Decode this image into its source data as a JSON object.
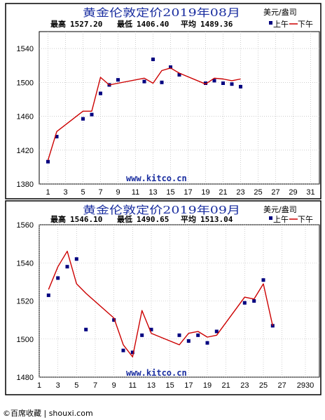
{
  "colors": {
    "line": "#cc0000",
    "marker": "#000080",
    "title": "#1a2ea0",
    "frame": "#000000",
    "grid": "#b0b0b0"
  },
  "footer": "©百席收藏 | shouxi.com",
  "chart_data": [
    {
      "type": "line",
      "title": "黄金伦敦定价2019年08月",
      "unit": "美元/盎司",
      "stats": {
        "high_label": "最高",
        "high": "1527.20",
        "low_label": "最低",
        "low": "1406.40",
        "avg_label": "平均",
        "avg": "1489.36"
      },
      "legend": {
        "am": "上午",
        "pm": "下午",
        "placement": "top-right"
      },
      "watermark": "www.kitco.cn",
      "xlim": [
        0,
        32
      ],
      "xticks": [
        "1",
        "3",
        "5",
        "7",
        "9",
        "11",
        "13",
        "15",
        "17",
        "19",
        "21",
        "23",
        "25",
        "27",
        "29",
        "31"
      ],
      "ylim": [
        1380,
        1560
      ],
      "yticks": [
        "1380",
        "1420",
        "1460",
        "1500",
        "1540"
      ],
      "grid": true,
      "series": [
        {
          "name": "上午",
          "style": "marker",
          "x": [
            1,
            2,
            5,
            6,
            7,
            8,
            9,
            12,
            13,
            14,
            15,
            16,
            19,
            20,
            21,
            22,
            23
          ],
          "y": [
            1406.4,
            1436,
            1457,
            1462,
            1487,
            1497,
            1503,
            1501,
            1527.2,
            1500,
            1518,
            1509,
            1499,
            1502,
            1499,
            1498,
            1495
          ]
        },
        {
          "name": "下午",
          "style": "line",
          "x": [
            1,
            2,
            5,
            6,
            7,
            8,
            9,
            12,
            13,
            14,
            15,
            16,
            19,
            20,
            21,
            22,
            23
          ],
          "y": [
            1408,
            1442,
            1466,
            1466,
            1506,
            1497,
            1499,
            1505,
            1499,
            1514,
            1517,
            1511,
            1498,
            1505,
            1504,
            1502,
            1504
          ]
        }
      ]
    },
    {
      "type": "line",
      "title": "黄金伦敦定价2019年09月",
      "unit": "美元/盎司",
      "stats": {
        "high_label": "最高",
        "high": "1546.10",
        "low_label": "最低",
        "low": "1490.65",
        "avg_label": "平均",
        "avg": "1513.04"
      },
      "legend": {
        "am": "上午",
        "pm": "下午",
        "placement": "top-right"
      },
      "watermark": "www.kitco.cn",
      "xlim": [
        1,
        31
      ],
      "xticks": [
        "1",
        "3",
        "5",
        "7",
        "9",
        "11",
        "13",
        "15",
        "17",
        "19",
        "21",
        "23",
        "25",
        "27",
        "2930"
      ],
      "ylim": [
        1480,
        1560
      ],
      "yticks": [
        "1480",
        "1500",
        "1520",
        "1540",
        "1560"
      ],
      "grid": true,
      "series": [
        {
          "name": "上午",
          "style": "marker",
          "x": [
            2,
            3,
            4,
            5,
            6,
            9,
            10,
            11,
            12,
            13,
            16,
            17,
            18,
            19,
            20,
            23,
            24,
            25,
            26
          ],
          "y": [
            1523,
            1532,
            1538,
            1542,
            1505,
            1510,
            1494,
            1493,
            1502,
            1505,
            1502,
            1499,
            1502,
            1498,
            1504,
            1519,
            1520,
            1531,
            1507
          ]
        },
        {
          "name": "下午",
          "style": "line",
          "x": [
            2,
            3,
            4,
            5,
            6,
            9,
            10,
            11,
            12,
            13,
            16,
            17,
            18,
            19,
            20,
            23,
            24,
            25,
            26
          ],
          "y": [
            1526,
            1538,
            1546.1,
            1529,
            1524,
            1511,
            1497,
            1490.65,
            1515,
            1503,
            1497,
            1503,
            1504,
            1501,
            1502,
            1522,
            1521,
            1529,
            1507
          ]
        }
      ]
    }
  ]
}
